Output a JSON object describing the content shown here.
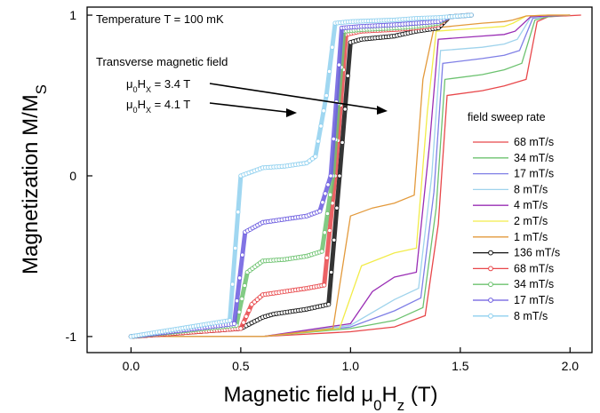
{
  "chart_data": {
    "type": "line",
    "xlabel": "Magnetic field μ0Hz (T)",
    "ylabel": "Magnetization M/MS",
    "xlim": [
      -0.2,
      2.1
    ],
    "ylim": [
      -1.1,
      1.05
    ],
    "xticks": [
      "0.0",
      "0.5",
      "1.0",
      "1.5",
      "2.0"
    ],
    "yticks": [
      "-1",
      "0",
      "1"
    ],
    "xtick_values": [
      0,
      0.5,
      1.0,
      1.5,
      2.0
    ],
    "ytick_values": [
      -1,
      0,
      1
    ],
    "annotations": {
      "temperature": "Temperature T = 100 mK",
      "transverse_title": "Transverse magnetic field",
      "hx1": "μ0HX = 3.4 T",
      "hx2": "μ0HX = 4.1 T"
    },
    "legend_title": "field sweep rate",
    "legend_position": "right",
    "series": [
      {
        "name": "68 mT/s",
        "group": "3.4 T",
        "color": "#e8474a",
        "style": "line",
        "x": [
          0,
          0.6,
          1.0,
          1.2,
          1.34,
          1.4,
          1.44,
          1.6,
          1.7,
          1.8,
          1.85,
          1.9,
          2.05
        ],
        "y": [
          -1,
          -1,
          -0.97,
          -0.94,
          -0.87,
          -0.3,
          0.5,
          0.53,
          0.56,
          0.6,
          0.96,
          0.99,
          1
        ]
      },
      {
        "name": "34 mT/s",
        "group": "3.4 T",
        "color": "#6cc26f",
        "style": "line",
        "x": [
          0,
          0.6,
          1.0,
          1.2,
          1.33,
          1.39,
          1.43,
          1.6,
          1.7,
          1.78,
          1.84,
          1.9,
          2.0
        ],
        "y": [
          -1,
          -1,
          -0.95,
          -0.9,
          -0.82,
          -0.2,
          0.6,
          0.63,
          0.66,
          0.7,
          0.97,
          0.99,
          1
        ]
      },
      {
        "name": "17 mT/s",
        "group": "3.4 T",
        "color": "#7f7fe6",
        "style": "line",
        "x": [
          0,
          0.6,
          1.0,
          1.2,
          1.32,
          1.38,
          1.42,
          1.6,
          1.7,
          1.77,
          1.83,
          1.9,
          2.0
        ],
        "y": [
          -1,
          -1,
          -0.94,
          -0.84,
          -0.76,
          -0.1,
          0.7,
          0.73,
          0.75,
          0.78,
          0.98,
          0.995,
          1
        ]
      },
      {
        "name": "8 mT/s",
        "group": "3.4 T",
        "color": "#9fd3ec",
        "style": "line",
        "x": [
          0,
          0.6,
          1.0,
          1.2,
          1.31,
          1.37,
          1.41,
          1.6,
          1.7,
          1.76,
          1.82,
          1.9,
          2.0
        ],
        "y": [
          -1,
          -1,
          -0.93,
          -0.77,
          -0.7,
          0.0,
          0.78,
          0.8,
          0.82,
          0.85,
          0.985,
          0.995,
          1
        ]
      },
      {
        "name": "4 mT/s",
        "group": "3.4 T",
        "color": "#9a2eb5",
        "style": "line",
        "x": [
          0,
          0.6,
          1.0,
          1.1,
          1.2,
          1.3,
          1.36,
          1.4,
          1.6,
          1.7,
          1.75,
          1.82,
          1.9,
          2.0
        ],
        "y": [
          -1,
          -1,
          -0.92,
          -0.72,
          -0.63,
          -0.6,
          0.2,
          0.85,
          0.87,
          0.88,
          0.9,
          0.99,
          0.995,
          1
        ]
      },
      {
        "name": "2 mT/s",
        "group": "3.4 T",
        "color": "#f2ec4a",
        "style": "line",
        "x": [
          0,
          0.6,
          0.95,
          1.05,
          1.2,
          1.3,
          1.35,
          1.39,
          1.6,
          1.7,
          1.74,
          1.8,
          1.9,
          2.0
        ],
        "y": [
          -1,
          -1,
          -0.95,
          -0.56,
          -0.48,
          -0.45,
          0.4,
          0.9,
          0.92,
          0.93,
          0.95,
          0.995,
          1,
          1
        ]
      },
      {
        "name": "1 mT/s",
        "group": "3.4 T",
        "color": "#e39a3c",
        "style": "line",
        "x": [
          0,
          0.6,
          0.92,
          1.0,
          1.1,
          1.2,
          1.29,
          1.33,
          1.38,
          1.6,
          1.7,
          1.74,
          1.8,
          1.9,
          2.0
        ],
        "y": [
          -1,
          -1,
          -0.95,
          -0.25,
          -0.2,
          -0.17,
          -0.12,
          0.6,
          0.92,
          0.95,
          0.96,
          0.97,
          0.995,
          1,
          1
        ]
      },
      {
        "name": "136 mT/s",
        "group": "4.1 T",
        "color": "#111111",
        "style": "circle",
        "x": [
          0,
          0.5,
          0.6,
          0.65,
          0.7,
          0.8,
          0.9,
          0.95,
          1.0,
          1.05,
          1.2,
          1.3,
          1.4,
          1.45,
          1.55
        ],
        "y": [
          -1,
          -0.95,
          -0.88,
          -0.86,
          -0.85,
          -0.83,
          -0.8,
          0.0,
          0.83,
          0.85,
          0.87,
          0.9,
          0.92,
          0.99,
          1
        ]
      },
      {
        "name": "68 mT/s",
        "group": "4.1 T",
        "color": "#e8474a",
        "style": "circle",
        "x": [
          0,
          0.5,
          0.55,
          0.6,
          0.7,
          0.8,
          0.88,
          0.93,
          0.98,
          1.05,
          1.2,
          1.3,
          1.4,
          1.45,
          1.55
        ],
        "y": [
          -1,
          -0.95,
          -0.8,
          -0.74,
          -0.72,
          -0.7,
          -0.68,
          0.0,
          0.88,
          0.9,
          0.91,
          0.92,
          0.94,
          0.99,
          1
        ]
      },
      {
        "name": "34 mT/s",
        "group": "4.1 T",
        "color": "#6cc26f",
        "style": "circle",
        "x": [
          0,
          0.48,
          0.53,
          0.6,
          0.7,
          0.8,
          0.87,
          0.92,
          0.97,
          1.05,
          1.2,
          1.3,
          1.4,
          1.45,
          1.55
        ],
        "y": [
          -1,
          -0.93,
          -0.6,
          -0.53,
          -0.52,
          -0.5,
          -0.47,
          0.0,
          0.9,
          0.91,
          0.92,
          0.93,
          0.95,
          0.99,
          1
        ]
      },
      {
        "name": "17 mT/s",
        "group": "4.1 T",
        "color": "#6b5bdf",
        "style": "circle",
        "x": [
          0,
          0.47,
          0.52,
          0.6,
          0.7,
          0.8,
          0.86,
          0.91,
          0.96,
          1.05,
          1.2,
          1.3,
          1.4,
          1.45,
          1.55
        ],
        "y": [
          -1,
          -0.92,
          -0.35,
          -0.29,
          -0.27,
          -0.25,
          -0.22,
          0.0,
          0.92,
          0.93,
          0.94,
          0.95,
          0.96,
          0.99,
          1
        ]
      },
      {
        "name": "8 mT/s",
        "group": "4.1 T",
        "color": "#8fd0ef",
        "style": "circle",
        "x": [
          0,
          0.45,
          0.5,
          0.6,
          0.7,
          0.8,
          0.84,
          0.89,
          0.93,
          1.0,
          1.2,
          1.3,
          1.4,
          1.45,
          1.55
        ],
        "y": [
          -1,
          -0.9,
          0.0,
          0.05,
          0.06,
          0.08,
          0.12,
          0.5,
          0.95,
          0.96,
          0.97,
          0.98,
          0.985,
          0.99,
          1
        ]
      }
    ]
  }
}
